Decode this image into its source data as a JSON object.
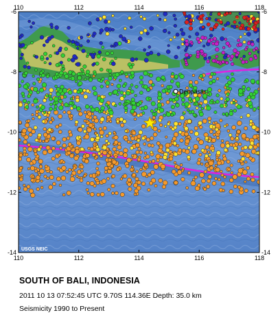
{
  "map": {
    "title": "SOUTH OF BALI, INDONESIA",
    "event_info": "2011 10 13 07:52:45 UTC 9.70S 114.36E Depth: 35.0 km",
    "seismicity_period": "Seismicity 1990 to Present",
    "credit": "USGS NEIC",
    "city": {
      "name": "Denpasar",
      "lon": 115.22,
      "lat": -8.65
    },
    "epicenter": {
      "lon": 114.36,
      "lat": -9.7
    },
    "bounds": {
      "lon": [
        110,
        118
      ],
      "lat": [
        -14,
        -6
      ]
    },
    "lon_ticks": [
      {
        "value": 110,
        "label": "110"
      },
      {
        "value": 112,
        "label": "112"
      },
      {
        "value": 114,
        "label": "114"
      },
      {
        "value": 116,
        "label": "116"
      },
      {
        "value": 118,
        "label": "118"
      }
    ],
    "lat_ticks": [
      {
        "value": -6,
        "label": "-6"
      },
      {
        "value": -8,
        "label": "-8"
      },
      {
        "value": -10,
        "label": "-10"
      },
      {
        "value": -12,
        "label": "-12"
      },
      {
        "value": -14,
        "label": "-14"
      }
    ],
    "colors": {
      "ocean": "#5b88cc",
      "land": "#3f9a4d",
      "plate_boundary": "#e020e0",
      "shallow": "#f59a2c",
      "intermediate": "#ffe431",
      "mid": "#32d235",
      "deep": "#1f2ac4",
      "very_deep": "#c81fc8",
      "deepest": "#e0201e",
      "epicenter": "#ffee00"
    }
  }
}
